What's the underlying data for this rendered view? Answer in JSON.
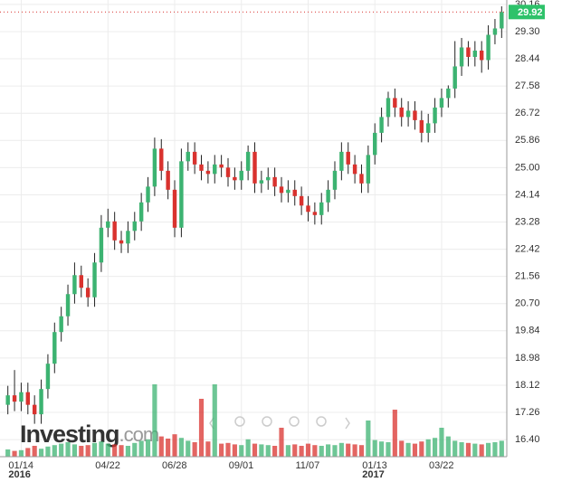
{
  "chart_data": {
    "type": "candlestick",
    "categories": [
      null,
      null,
      "01/14",
      null,
      null,
      null,
      null,
      null,
      null,
      null,
      null,
      null,
      null,
      null,
      null,
      "04/22",
      null,
      null,
      null,
      null,
      null,
      null,
      null,
      null,
      null,
      "06/28",
      null,
      null,
      null,
      null,
      null,
      null,
      null,
      null,
      null,
      "09/01",
      null,
      null,
      null,
      null,
      null,
      null,
      null,
      null,
      null,
      "11/07",
      null,
      null,
      null,
      null,
      null,
      null,
      null,
      null,
      null,
      "01/13",
      null,
      null,
      null,
      null,
      null,
      null,
      null,
      null,
      null,
      "03/22",
      null,
      null,
      null,
      null,
      null,
      null,
      null,
      null,
      null
    ],
    "years": [
      {
        "at": "01/14",
        "label": "2016"
      },
      {
        "at": "01/13",
        "label": "2017"
      }
    ],
    "open": [
      17.5,
      17.8,
      17.6,
      17.9,
      17.5,
      17.2,
      18.0,
      18.8,
      19.8,
      20.3,
      21.0,
      21.6,
      21.2,
      20.9,
      22.0,
      23.1,
      23.3,
      22.7,
      22.6,
      23.0,
      23.3,
      23.9,
      24.4,
      25.6,
      24.9,
      24.3,
      23.1,
      25.2,
      25.5,
      25.1,
      24.9,
      24.8,
      25.1,
      25.0,
      24.7,
      24.6,
      24.9,
      25.5,
      24.5,
      24.6,
      24.7,
      24.4,
      24.2,
      24.3,
      24.1,
      23.8,
      23.6,
      23.5,
      23.9,
      24.3,
      24.9,
      25.5,
      25.1,
      24.8,
      24.5,
      25.4,
      26.1,
      26.6,
      27.2,
      26.9,
      26.6,
      26.8,
      26.5,
      26.1,
      26.4,
      26.9,
      27.2,
      27.5,
      28.2,
      28.8,
      28.5,
      28.7,
      28.4,
      29.2,
      29.4
    ],
    "high": [
      18.1,
      18.6,
      18.2,
      18.2,
      17.8,
      18.3,
      19.1,
      20.1,
      20.6,
      21.3,
      22.0,
      21.9,
      21.5,
      22.3,
      23.5,
      23.7,
      23.6,
      23.0,
      23.3,
      23.6,
      24.2,
      24.7,
      25.95,
      25.9,
      25.2,
      24.6,
      25.6,
      25.8,
      25.8,
      25.4,
      25.2,
      25.4,
      25.4,
      25.3,
      25.0,
      25.2,
      25.7,
      25.8,
      24.9,
      25.0,
      25.0,
      24.7,
      24.6,
      24.6,
      24.4,
      24.1,
      23.9,
      24.2,
      24.6,
      25.2,
      25.8,
      25.8,
      25.4,
      25.1,
      25.7,
      26.4,
      26.9,
      27.4,
      27.5,
      27.2,
      27.1,
      27.1,
      26.8,
      26.7,
      27.2,
      27.5,
      27.6,
      29.0,
      29.1,
      29.0,
      29.0,
      29.0,
      29.5,
      29.7,
      30.1
    ],
    "low": [
      17.2,
      17.3,
      17.3,
      17.2,
      16.9,
      16.9,
      17.7,
      18.5,
      19.5,
      20.0,
      20.7,
      20.9,
      20.6,
      20.6,
      21.7,
      22.8,
      22.4,
      22.3,
      22.3,
      22.7,
      23.0,
      23.6,
      24.1,
      24.6,
      24.0,
      22.8,
      22.8,
      24.9,
      24.8,
      24.6,
      24.5,
      24.5,
      24.7,
      24.4,
      24.3,
      24.3,
      24.6,
      24.2,
      24.2,
      24.3,
      24.1,
      23.9,
      23.9,
      23.8,
      23.5,
      23.3,
      23.2,
      23.2,
      23.6,
      24.0,
      24.6,
      24.8,
      24.5,
      24.2,
      24.2,
      25.1,
      25.8,
      26.3,
      26.6,
      26.3,
      26.3,
      26.2,
      25.8,
      25.8,
      26.1,
      26.6,
      26.9,
      27.2,
      27.9,
      28.2,
      28.2,
      28.0,
      28.1,
      28.9,
      29.1
    ],
    "close": [
      17.8,
      17.6,
      17.9,
      17.5,
      17.2,
      18.0,
      18.8,
      19.8,
      20.3,
      21.0,
      21.6,
      21.2,
      20.9,
      22.0,
      23.1,
      23.3,
      22.7,
      22.6,
      23.0,
      23.3,
      23.9,
      24.4,
      25.6,
      24.9,
      24.3,
      23.1,
      25.2,
      25.5,
      25.1,
      24.9,
      24.8,
      25.1,
      25.0,
      24.7,
      24.6,
      24.9,
      25.5,
      24.5,
      24.6,
      24.7,
      24.4,
      24.2,
      24.3,
      24.1,
      23.8,
      23.6,
      23.5,
      23.9,
      24.3,
      24.9,
      25.5,
      25.1,
      24.8,
      24.5,
      25.4,
      26.1,
      26.6,
      27.2,
      26.9,
      26.6,
      26.8,
      26.5,
      26.1,
      26.4,
      26.9,
      27.2,
      27.5,
      28.2,
      28.8,
      28.5,
      28.7,
      28.4,
      29.2,
      29.4,
      29.92
    ],
    "volume": [
      1,
      0.8,
      0.9,
      1.2,
      1.5,
      1.1,
      1.4,
      1.6,
      1.8,
      2,
      1.7,
      1.5,
      1.6,
      1.9,
      2.1,
      1.8,
      1.7,
      1.6,
      1.5,
      1.9,
      2.2,
      2.4,
      10,
      2.8,
      2.5,
      3.1,
      2.6,
      2.2,
      2,
      8,
      2.1,
      10,
      1.8,
      1.9,
      1.7,
      1.6,
      2.4,
      1.8,
      1.7,
      1.6,
      1.5,
      4,
      1.6,
      1.7,
      1.5,
      1.8,
      1.6,
      1.5,
      1.7,
      1.6,
      1.9,
      1.8,
      1.7,
      1.6,
      5,
      2.3,
      2.1,
      2,
      6.5,
      2.2,
      1.9,
      1.8,
      2.1,
      2.4,
      2.6,
      4,
      2.8,
      2.2,
      2,
      1.9,
      1.8,
      1.7,
      1.9,
      2,
      2.2
    ],
    "up_color": "#3cb371",
    "down_color": "#d9322e",
    "last_price": 29.92,
    "last_color": "#2ec26a",
    "ylim": [
      15.86,
      30.3
    ],
    "yticks": [
      {
        "value": 16.4,
        "label": "16.40"
      },
      17.26,
      18.12,
      18.98,
      19.84,
      {
        "value": 20.7,
        "label": "20.70"
      },
      21.56,
      22.42,
      23.28,
      24.14,
      {
        "value": 25,
        "label": "25.00"
      },
      25.86,
      26.72,
      27.58,
      28.44,
      {
        "value": 29.3,
        "label": "29.30"
      },
      30.16
    ],
    "grid": true,
    "watermark": [
      "Investing",
      ".com"
    ]
  }
}
